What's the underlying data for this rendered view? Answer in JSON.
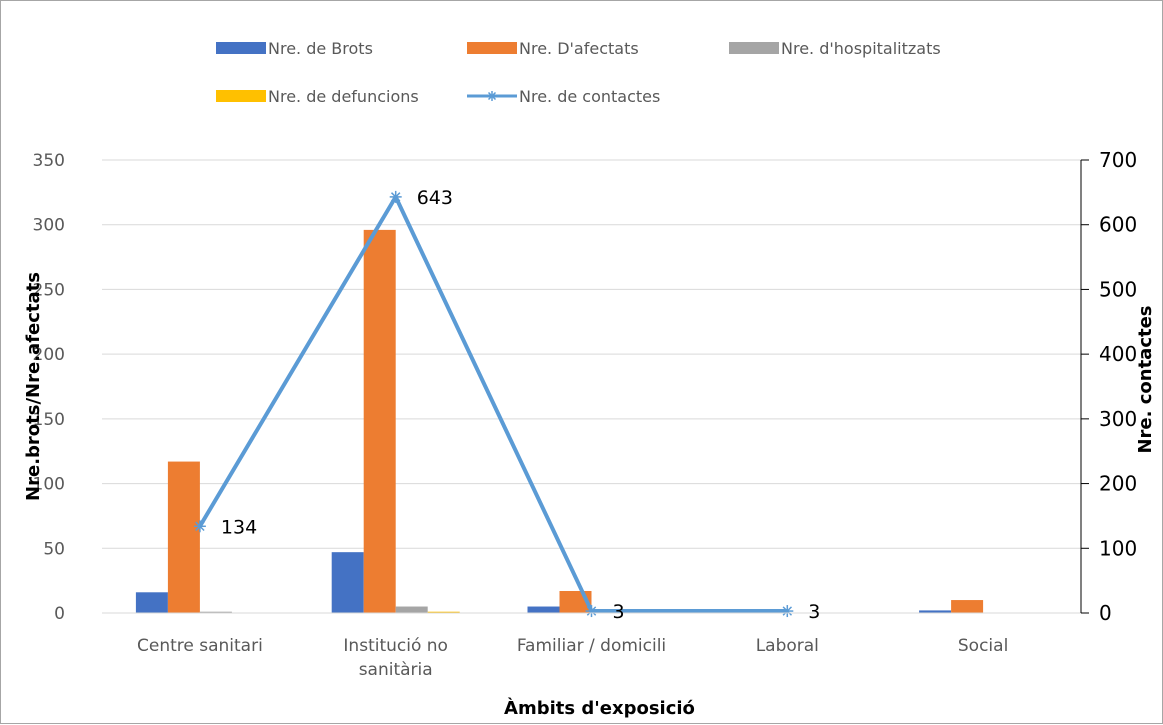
{
  "chart_data": {
    "type": "bar",
    "xlabel": "Àmbits d'exposició",
    "ylabel": "Nre.brots/Nre.afectats",
    "y2label": "Nre. contactes",
    "ylim": [
      0,
      350
    ],
    "y2lim": [
      0,
      700
    ],
    "yticks": [
      "0",
      "50",
      "100",
      "150",
      "200",
      "250",
      "300",
      "350"
    ],
    "y2ticks": [
      "0",
      "100",
      "200",
      "300",
      "400",
      "500",
      "600",
      "700"
    ],
    "categories": [
      [
        "Centre sanitari"
      ],
      [
        "Institució no",
        "sanitària"
      ],
      [
        "Familiar / domicili"
      ],
      [
        "Laboral"
      ],
      [
        "Social"
      ]
    ],
    "grid": true,
    "legend_position": "top",
    "series": [
      {
        "name": "Nre. de Brots",
        "type": "bar",
        "axis": "left",
        "color": "#4472c4",
        "values": [
          16,
          47,
          5,
          0,
          2
        ]
      },
      {
        "name": "Nre. D'afectats",
        "type": "bar",
        "axis": "left",
        "color": "#ed7d31",
        "values": [
          117,
          296,
          17,
          0,
          10
        ]
      },
      {
        "name": "Nre. d'hospitalitzats",
        "type": "bar",
        "axis": "left",
        "color": "#a5a5a5",
        "values": [
          1,
          5,
          0,
          0,
          0
        ]
      },
      {
        "name": "Nre. de defuncions",
        "type": "bar",
        "axis": "left",
        "color": "#ffc000",
        "values": [
          0,
          1,
          0,
          0,
          0
        ]
      },
      {
        "name": "Nre. de contactes",
        "type": "line",
        "axis": "right",
        "color": "#5b9bd5",
        "marker": "asterisk",
        "values": [
          134,
          643,
          3,
          3,
          null
        ],
        "labels": [
          "134",
          "643",
          "3",
          "3",
          ""
        ]
      }
    ]
  }
}
